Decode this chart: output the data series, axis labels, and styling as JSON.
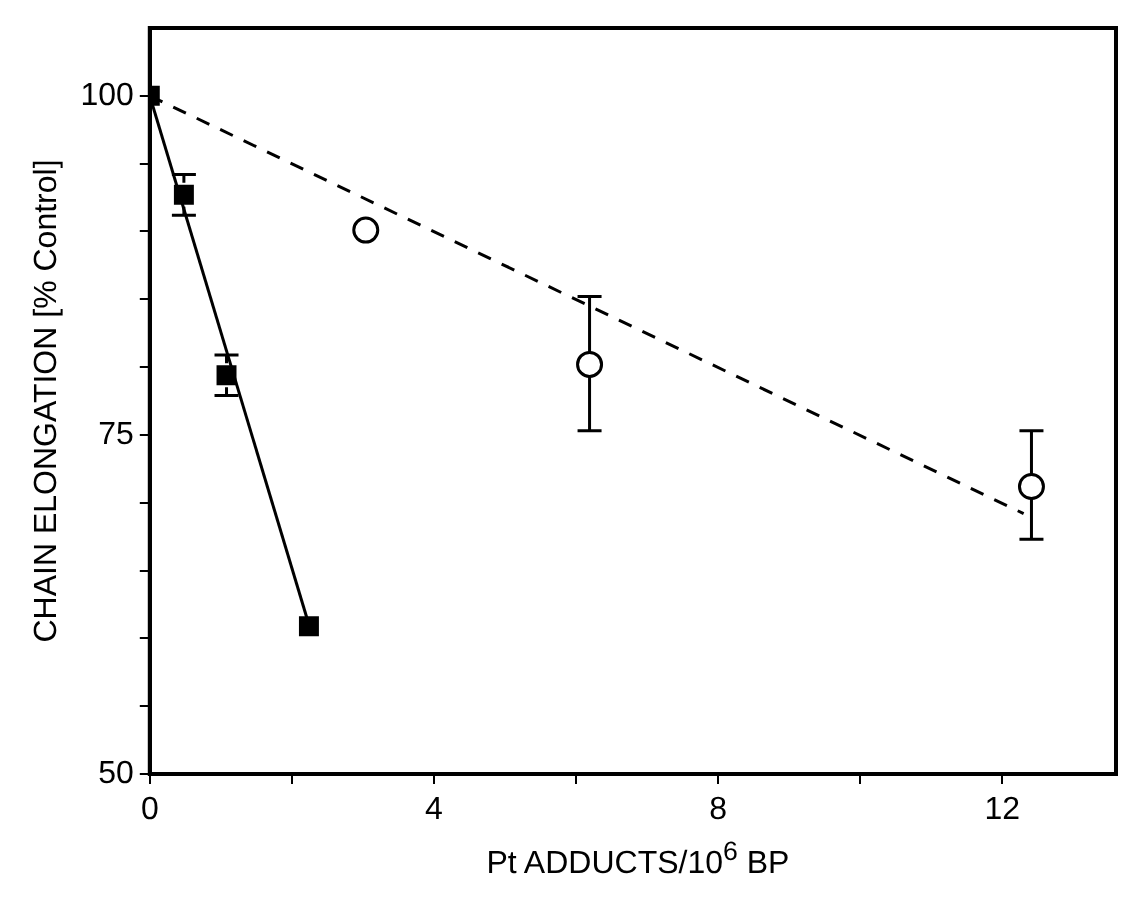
{
  "chart_data": {
    "type": "scatter",
    "xlabel": "Pt ADDUCTS/10$^{6}$ BP",
    "ylabel": "CHAIN ELONGATION [% Control]",
    "xlim": [
      0,
      13.6
    ],
    "ylim": [
      50,
      105
    ],
    "xticks": [
      0,
      {
        "value": 2,
        "label": null
      },
      4,
      {
        "value": 6,
        "label": null
      },
      8,
      {
        "value": 10,
        "label": null
      },
      12
    ],
    "yticks": [
      50,
      {
        "value": 55,
        "label": null
      },
      {
        "value": 60,
        "label": null
      },
      {
        "value": 65,
        "label": null
      },
      {
        "value": 70,
        "label": null
      },
      75,
      {
        "value": 80,
        "label": null
      },
      {
        "value": 85,
        "label": null
      },
      {
        "value": 90,
        "label": null
      },
      {
        "value": 95,
        "label": null
      },
      100
    ],
    "grid": false,
    "legend": false,
    "series": [
      {
        "type": "scatter",
        "marker": "square",
        "color": "#000000",
        "x": [
          0,
          0.48,
          1.08,
          2.24
        ],
        "values": [
          100,
          92.7,
          79.4,
          60.9
        ],
        "errors": [
          null,
          1.5,
          1.5,
          null
        ]
      },
      {
        "type": "scatter",
        "marker": "circle",
        "color": "#000000",
        "x": [
          3.04,
          6.19,
          12.41
        ],
        "values": [
          90.1,
          80.2,
          71.2
        ],
        "errors": [
          null,
          [
            75.3,
            85.2
          ],
          [
            67.3,
            75.3
          ]
        ]
      },
      {
        "type": "line",
        "line_style": "solid",
        "marker": "none",
        "color": "#000000",
        "x": [
          0,
          2.24
        ],
        "values": [
          100,
          61
        ]
      },
      {
        "type": "line",
        "line_style": "dashed",
        "marker": "none",
        "color": "#000000",
        "x": [
          0,
          12.3
        ],
        "values": [
          100,
          69.2
        ]
      }
    ]
  }
}
